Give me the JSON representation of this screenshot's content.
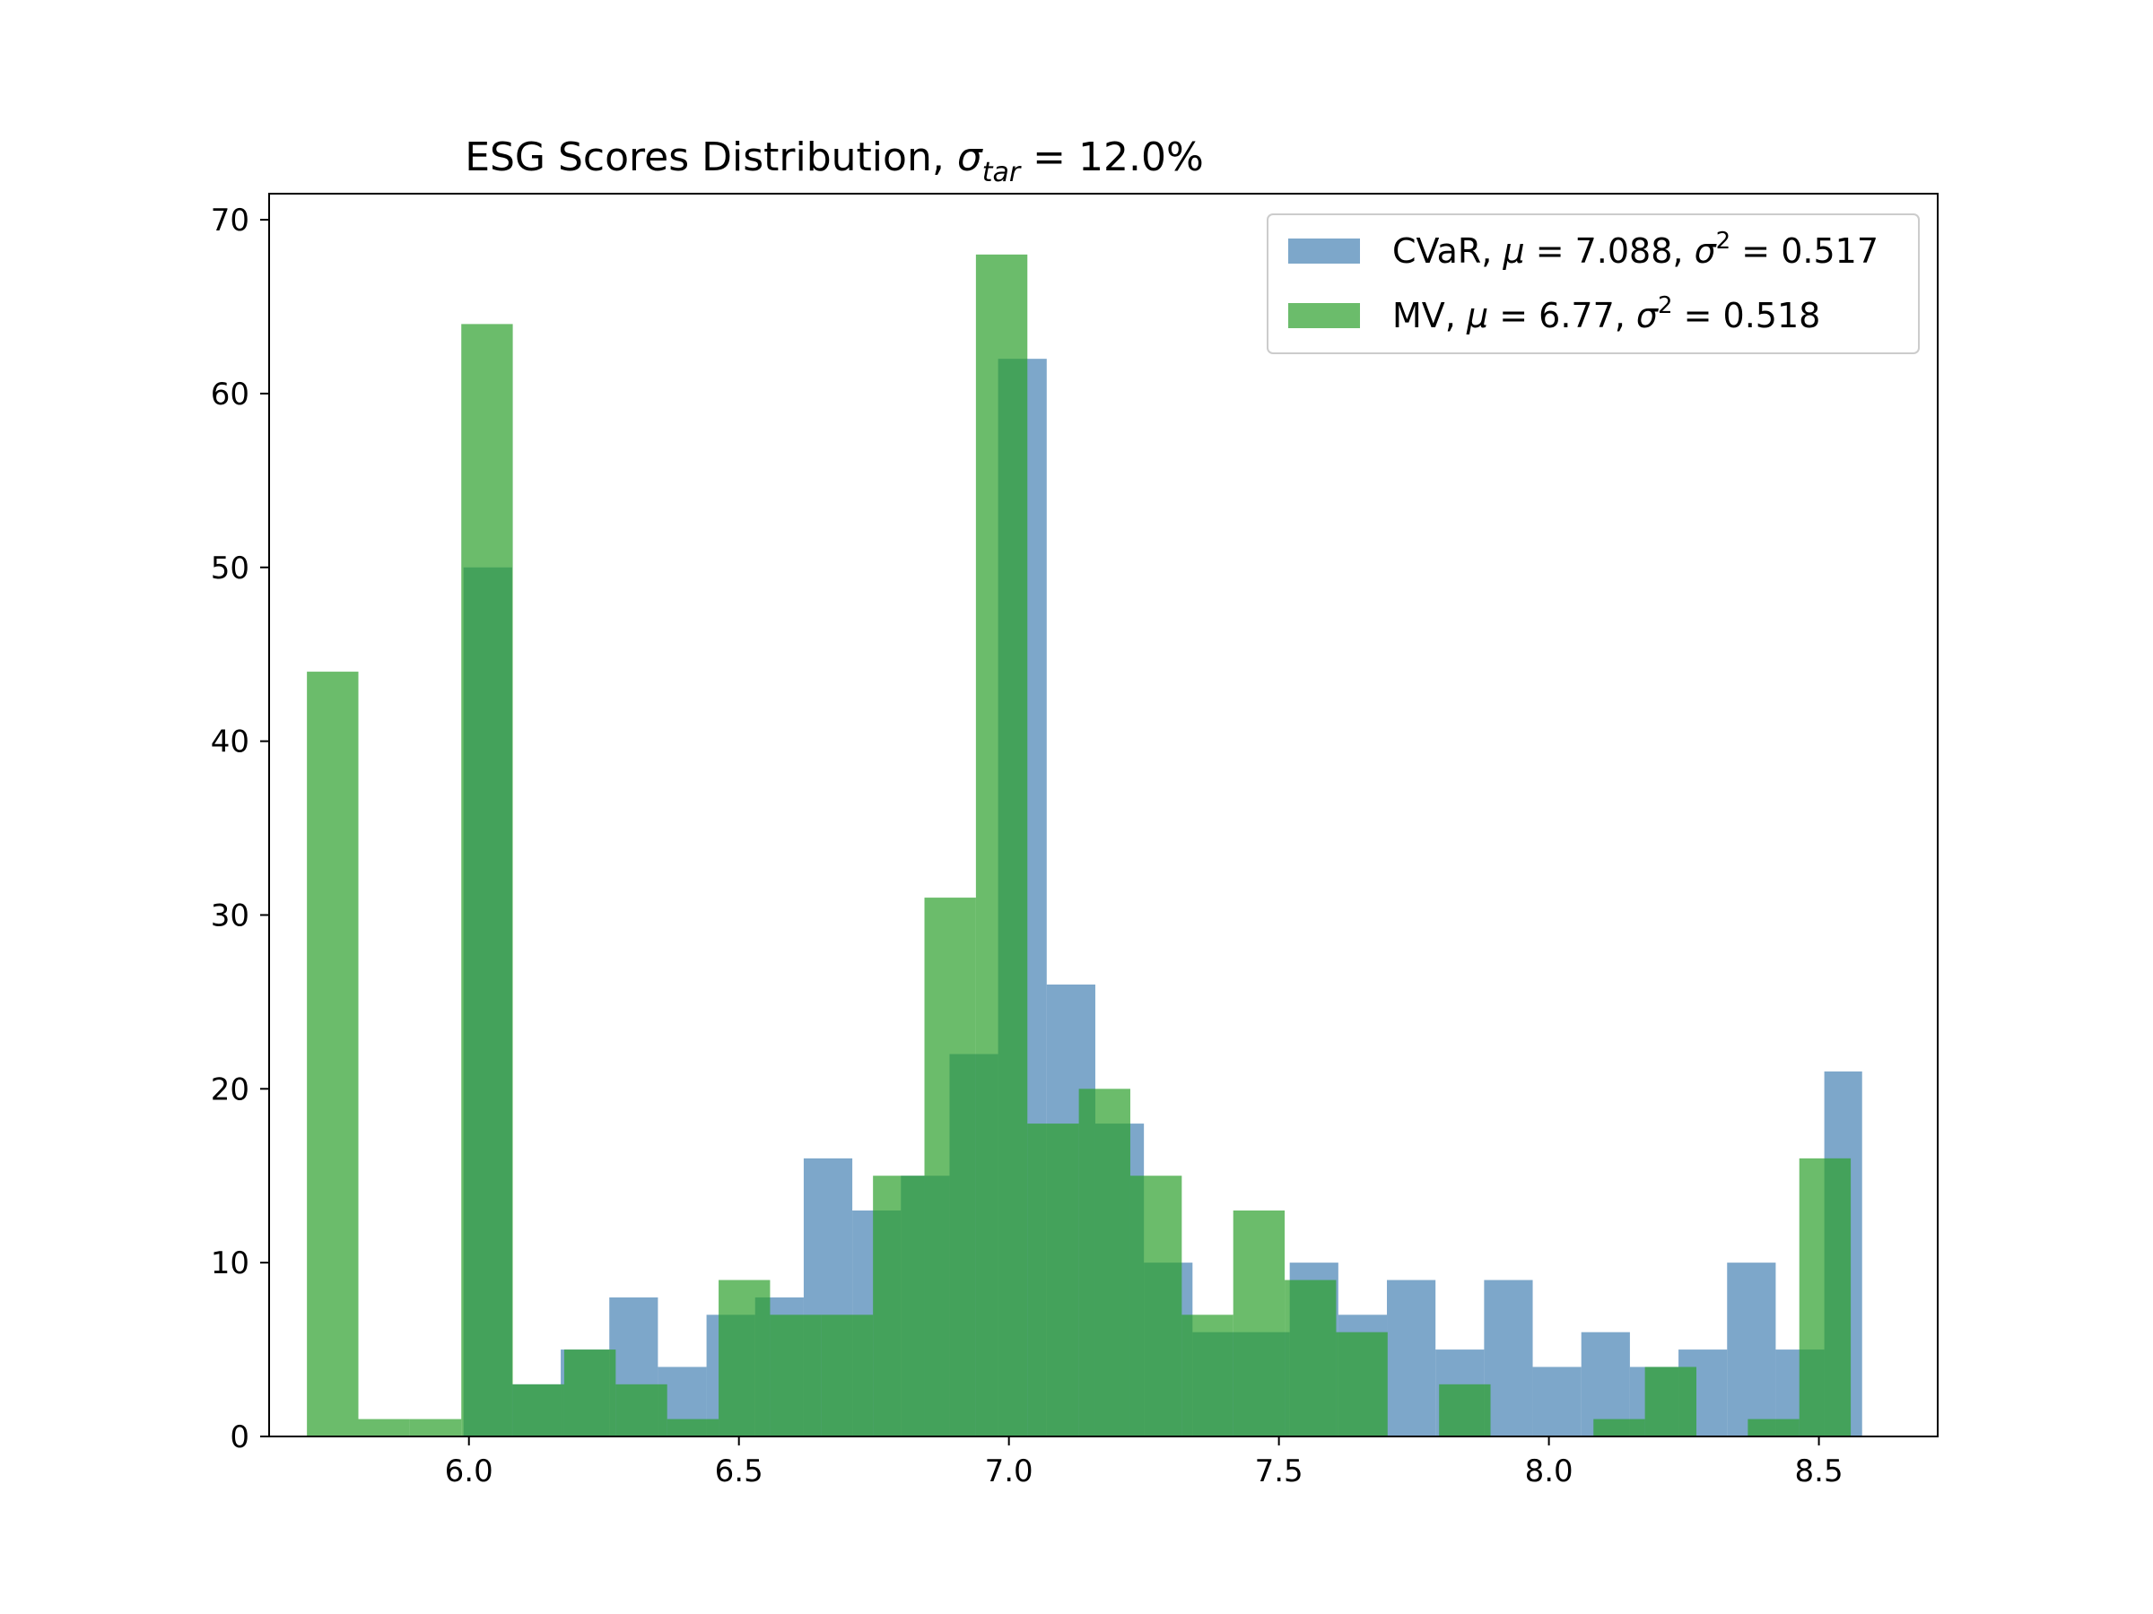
{
  "chart_data": {
    "type": "bar",
    "title": {
      "main": "ESG Scores Distribution, ",
      "sigma": "σ",
      "sigma_sub": "tar",
      "value": " = 12.0%"
    },
    "xlabel": "",
    "ylabel": "",
    "xlim": [
      5.63,
      8.72
    ],
    "ylim": [
      0,
      71.5
    ],
    "xticks": [
      "6.0",
      "6.5",
      "7.0",
      "7.5",
      "8.0",
      "8.5"
    ],
    "yticks": [
      "0",
      "10",
      "20",
      "30",
      "40",
      "50",
      "60",
      "70"
    ],
    "grid": false,
    "legend_position": "top-right",
    "series": [
      {
        "name": "CVaR",
        "legend": {
          "name": "CVaR, ",
          "mu": "μ",
          "mu_val": " = 7.088, ",
          "sigma": "σ",
          "sup": "2",
          "sigma_val": " = 0.517"
        },
        "color": "#4682b4",
        "bin_edges": [
          5.99,
          6.08,
          6.17,
          6.26,
          6.35,
          6.44,
          6.53,
          6.62,
          6.71,
          6.8,
          6.89,
          6.98,
          7.07,
          7.16,
          7.25,
          7.34,
          7.43,
          7.52,
          7.61,
          7.7,
          7.79,
          7.88,
          7.97,
          8.06,
          8.15,
          8.24,
          8.33,
          8.42,
          8.51,
          8.58
        ],
        "counts": [
          50,
          3,
          5,
          8,
          4,
          7,
          8,
          16,
          13,
          15,
          22,
          62,
          26,
          18,
          10,
          6,
          6,
          10,
          7,
          9,
          5,
          9,
          4,
          6,
          4,
          5,
          10,
          5,
          21
        ]
      },
      {
        "name": "MV",
        "legend": {
          "name": "MV, ",
          "mu": "μ",
          "mu_val": " = 6.77, ",
          "sigma": "σ",
          "sup": "2",
          "sigma_val": " = 0.518"
        },
        "color": "#2ca02c",
        "bin_edges": [
          5.7,
          5.7953,
          5.8906,
          5.9859,
          6.0812,
          6.1765,
          6.2718,
          6.3671,
          6.4624,
          6.5577,
          6.653,
          6.7483,
          6.8436,
          6.9389,
          7.0342,
          7.1295,
          7.2248,
          7.3201,
          7.4154,
          7.5107,
          7.606,
          7.7013,
          7.7966,
          7.8919,
          7.9872,
          8.0825,
          8.1778,
          8.2731,
          8.3684,
          8.4637,
          8.559
        ],
        "counts": [
          44,
          1,
          1,
          64,
          3,
          5,
          3,
          1,
          9,
          7,
          7,
          15,
          31,
          68,
          18,
          20,
          15,
          7,
          13,
          9,
          6,
          0,
          3,
          0,
          0,
          1,
          4,
          0,
          1,
          16
        ]
      }
    ]
  }
}
